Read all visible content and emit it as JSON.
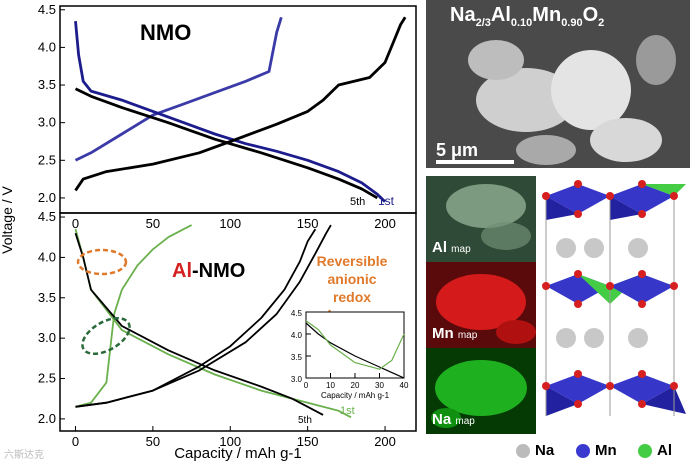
{
  "chart_data": [
    {
      "type": "line",
      "title": "NMO",
      "xlabel": "",
      "ylabel": "Voltage / V",
      "xlim": [
        -10,
        220
      ],
      "ylim": [
        1.8,
        4.55
      ],
      "yticks": [
        2.0,
        2.5,
        3.0,
        3.5,
        4.0,
        4.5
      ],
      "cycle_labels": [
        "5th",
        "1st"
      ],
      "series": [
        {
          "name": "1st charge",
          "color": "#3a3aa8",
          "x": [
            0,
            10,
            30,
            50,
            70,
            90,
            110,
            125,
            130,
            133
          ],
          "y": [
            2.5,
            2.6,
            2.85,
            3.1,
            3.25,
            3.4,
            3.55,
            3.68,
            4.2,
            4.4
          ]
        },
        {
          "name": "1st discharge",
          "color": "#1c1c8c",
          "x": [
            0,
            2,
            5,
            10,
            30,
            50,
            70,
            90,
            110,
            130,
            150,
            170,
            185,
            195,
            200
          ],
          "y": [
            4.35,
            3.9,
            3.55,
            3.42,
            3.3,
            3.15,
            3.0,
            2.85,
            2.72,
            2.62,
            2.5,
            2.35,
            2.2,
            2.05,
            1.95
          ]
        },
        {
          "name": "5th charge",
          "color": "#000000",
          "x": [
            0,
            5,
            20,
            50,
            80,
            100,
            130,
            150,
            160,
            170,
            190,
            200,
            205,
            210,
            213
          ],
          "y": [
            2.1,
            2.25,
            2.35,
            2.45,
            2.6,
            2.75,
            2.98,
            3.15,
            3.3,
            3.5,
            3.6,
            3.8,
            4.05,
            4.3,
            4.4
          ]
        },
        {
          "name": "5th discharge",
          "color": "#000000",
          "x": [
            0,
            10,
            30,
            60,
            90,
            120,
            150,
            170,
            185,
            195
          ],
          "y": [
            3.45,
            3.35,
            3.2,
            3.0,
            2.78,
            2.6,
            2.4,
            2.25,
            2.12,
            2.0
          ]
        }
      ]
    },
    {
      "type": "line",
      "title": "Al-NMO",
      "title_parts": [
        "Al",
        "-NMO"
      ],
      "xlabel": "Capacity / mAh g-1",
      "ylabel": "Voltage / V",
      "xlim": [
        -10,
        220
      ],
      "ylim": [
        1.85,
        4.55
      ],
      "xticks": [
        0,
        50,
        100,
        150,
        200
      ],
      "yticks": [
        2.0,
        2.5,
        3.0,
        3.5,
        4.0,
        4.5
      ],
      "cycle_labels": [
        "5th",
        "1st"
      ],
      "annotation": [
        "Reversible",
        "anionic",
        "redox"
      ],
      "series": [
        {
          "name": "1st charge",
          "color": "#6ab04c",
          "x": [
            0,
            10,
            20,
            25,
            30,
            40,
            50,
            60,
            70,
            75
          ],
          "y": [
            2.15,
            2.2,
            2.45,
            3.3,
            3.6,
            3.9,
            4.1,
            4.25,
            4.35,
            4.4
          ]
        },
        {
          "name": "1st discharge",
          "color": "#6ab04c",
          "x": [
            0,
            5,
            10,
            30,
            60,
            90,
            120,
            150,
            170,
            178
          ],
          "y": [
            4.35,
            4.0,
            3.6,
            3.1,
            2.8,
            2.55,
            2.35,
            2.2,
            2.1,
            2.02
          ]
        },
        {
          "name": "5th charge",
          "color": "#000000",
          "x": [
            0,
            20,
            50,
            80,
            100,
            120,
            135,
            145,
            150,
            155
          ],
          "y": [
            2.15,
            2.2,
            2.35,
            2.65,
            2.9,
            3.25,
            3.6,
            3.95,
            4.2,
            4.35
          ]
        },
        {
          "name": "5th discharge",
          "color": "#000000",
          "x": [
            0,
            5,
            10,
            30,
            60,
            90,
            120,
            140,
            150,
            160
          ],
          "y": [
            4.3,
            4.0,
            3.6,
            3.15,
            2.85,
            2.6,
            2.4,
            2.25,
            2.15,
            2.05
          ]
        },
        {
          "name": "cycles charge",
          "color": "#000000",
          "x": [
            0,
            20,
            50,
            80,
            110,
            130,
            145,
            155,
            162,
            165
          ],
          "y": [
            2.15,
            2.2,
            2.35,
            2.6,
            2.95,
            3.3,
            3.7,
            4.05,
            4.3,
            4.4
          ]
        }
      ]
    },
    {
      "type": "line",
      "title": "",
      "xlabel": "Capacity / mAh g-1",
      "ylabel": "",
      "xlim": [
        0,
        40
      ],
      "ylim": [
        3.0,
        4.5
      ],
      "xticks": [
        0,
        10,
        20,
        30,
        40
      ],
      "yticks": [
        3.0,
        3.5,
        4.0,
        4.5
      ],
      "series": [
        {
          "name": "inset 5th",
          "color": "#000000",
          "x": [
            0,
            5,
            10,
            20,
            30,
            38,
            40
          ],
          "y": [
            4.25,
            4.0,
            3.8,
            3.5,
            3.25,
            3.05,
            3.0
          ]
        },
        {
          "name": "inset 1st",
          "color": "#6ab04c",
          "x": [
            0,
            5,
            10,
            20,
            30,
            35,
            40
          ],
          "y": [
            4.3,
            4.1,
            3.75,
            3.35,
            3.2,
            3.4,
            4.0
          ]
        }
      ]
    }
  ],
  "sem": {
    "formula": [
      "Na",
      "2/3",
      "Al",
      "0.10",
      "Mn",
      "0.90",
      "O",
      "2"
    ],
    "scale": "5 μm"
  },
  "maps": [
    {
      "element": "Al",
      "suffix": "map",
      "color": "#6a8a6a"
    },
    {
      "element": "Mn",
      "suffix": "map",
      "color": "#c81414"
    },
    {
      "element": "Na",
      "suffix": "map",
      "color": "#14a014"
    }
  ],
  "legend": [
    {
      "label": "Na",
      "color": "#bbbbbb"
    },
    {
      "label": "Mn",
      "color": "#3a3ad0"
    },
    {
      "label": "Al",
      "color": "#44cc44"
    }
  ],
  "watermark": "六斯达克"
}
